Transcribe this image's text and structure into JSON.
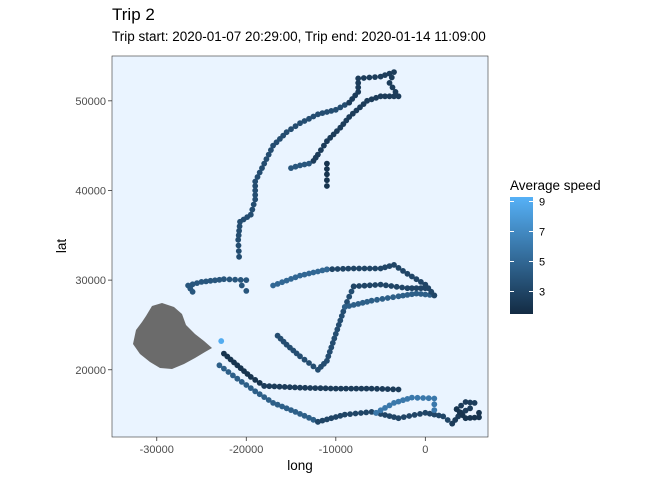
{
  "chart_data": {
    "type": "scatter",
    "title": "Trip 2",
    "subtitle": "Trip start: 2020-01-07 20:29:00, Trip end: 2020-01-14 11:09:00",
    "xlabel": "long",
    "ylabel": "lat",
    "xlim": [
      -35000,
      7000
    ],
    "ylim": [
      12500,
      55000
    ],
    "x_ticks": [
      -30000,
      -20000,
      -10000,
      0
    ],
    "x_tick_labels": [
      "-30000",
      "-20000",
      "-10000",
      "0"
    ],
    "y_ticks": [
      20000,
      30000,
      40000,
      50000
    ],
    "y_tick_labels": [
      "20000",
      "30000",
      "40000",
      "50000"
    ],
    "grid": false,
    "panel_background": "#eaf4ff",
    "legend": {
      "title": "Average speed",
      "position": "right",
      "ticks": [
        3,
        5,
        7,
        9
      ],
      "tick_labels": [
        "3",
        "5",
        "7",
        "9"
      ],
      "range": [
        1.5,
        9.3
      ],
      "color_low": "#132b43",
      "color_high": "#56b1f7"
    },
    "island_color": "#6b6b6b",
    "track_segments": [
      {
        "speed": 2.0,
        "points": [
          [
            -22500,
            21800
          ],
          [
            -21000,
            20500
          ],
          [
            -19500,
            19200
          ],
          [
            -18000,
            18200
          ]
        ]
      },
      {
        "speed": 2.5,
        "points": [
          [
            -18000,
            18200
          ],
          [
            -14000,
            18000
          ],
          [
            -10000,
            17900
          ],
          [
            -6000,
            17900
          ],
          [
            -3000,
            17800
          ]
        ]
      },
      {
        "speed": 4.5,
        "points": [
          [
            -23000,
            20500
          ],
          [
            -21000,
            19000
          ],
          [
            -19000,
            17600
          ],
          [
            -17000,
            16300
          ],
          [
            -14500,
            15300
          ],
          [
            -12000,
            14200
          ]
        ]
      },
      {
        "speed": 3.0,
        "points": [
          [
            -12000,
            14200
          ],
          [
            -9000,
            15000
          ],
          [
            -6000,
            15300
          ],
          [
            -3000,
            14600
          ],
          [
            0,
            15200
          ],
          [
            2000,
            14800
          ],
          [
            3000,
            14000
          ]
        ]
      },
      {
        "speed": 6.0,
        "points": [
          [
            -5500,
            15200
          ],
          [
            -3500,
            16300
          ],
          [
            -1500,
            16900
          ],
          [
            1000,
            16800
          ],
          [
            1000,
            15500
          ]
        ]
      },
      {
        "speed": 2.5,
        "points": [
          [
            3000,
            14000
          ],
          [
            4000,
            15200
          ],
          [
            5000,
            15700
          ],
          [
            5500,
            16300
          ],
          [
            4500,
            16400
          ],
          [
            3500,
            15600
          ]
        ]
      },
      {
        "speed": 2.0,
        "points": [
          [
            3500,
            15600
          ],
          [
            4500,
            14600
          ],
          [
            6000,
            14700
          ],
          [
            6000,
            15200
          ]
        ]
      },
      {
        "speed": 3.5,
        "points": [
          [
            -16500,
            23800
          ],
          [
            -15500,
            22800
          ],
          [
            -14000,
            21500
          ],
          [
            -12000,
            20000
          ],
          [
            -11000,
            21000
          ],
          [
            -10000,
            24000
          ],
          [
            -9000,
            27000
          ],
          [
            -8000,
            29300
          ]
        ]
      },
      {
        "speed": 3.0,
        "points": [
          [
            -8000,
            29300
          ],
          [
            -5000,
            29500
          ],
          [
            -2000,
            29100
          ],
          [
            0,
            29100
          ]
        ]
      },
      {
        "speed": 4.5,
        "points": [
          [
            -9000,
            27000
          ],
          [
            -6000,
            27700
          ],
          [
            -3000,
            28200
          ],
          [
            -1000,
            28500
          ],
          [
            1000,
            28300
          ]
        ]
      },
      {
        "speed": 3.0,
        "points": [
          [
            1000,
            28300
          ],
          [
            0,
            29500
          ],
          [
            -2000,
            30700
          ],
          [
            -3500,
            31700
          ],
          [
            -5000,
            31300
          ],
          [
            -8000,
            31300
          ],
          [
            -11000,
            31200
          ]
        ]
      },
      {
        "speed": 5.0,
        "points": [
          [
            -11000,
            31200
          ],
          [
            -14000,
            30500
          ],
          [
            -17000,
            29400
          ]
        ]
      },
      {
        "speed": 4.0,
        "points": [
          [
            -20000,
            30000
          ],
          [
            -22500,
            30100
          ],
          [
            -25000,
            29800
          ],
          [
            -26500,
            29400
          ],
          [
            -26000,
            28700
          ]
        ]
      },
      {
        "speed": 4.0,
        "points": [
          [
            -20000,
            28800
          ],
          [
            -20500,
            29400
          ]
        ]
      },
      {
        "speed": 3.5,
        "points": [
          [
            -20800,
            32600
          ],
          [
            -20900,
            34500
          ],
          [
            -20700,
            36500
          ],
          [
            -19500,
            37300
          ],
          [
            -19000,
            39000
          ],
          [
            -19000,
            41000
          ],
          [
            -18000,
            43000
          ],
          [
            -17000,
            45000
          ],
          [
            -15500,
            46500
          ],
          [
            -14000,
            47500
          ],
          [
            -12000,
            48500
          ],
          [
            -10000,
            49000
          ],
          [
            -8500,
            49800
          ]
        ]
      },
      {
        "speed": 2.5,
        "points": [
          [
            -8500,
            49800
          ],
          [
            -7500,
            51000
          ],
          [
            -7500,
            52500
          ],
          [
            -5000,
            52700
          ],
          [
            -3500,
            53200
          ],
          [
            -4000,
            52000
          ],
          [
            -3000,
            50500
          ],
          [
            -5000,
            50500
          ],
          [
            -6500,
            50000
          ],
          [
            -8500,
            48200
          ],
          [
            -9500,
            47000
          ],
          [
            -11000,
            45500
          ],
          [
            -12000,
            44000
          ],
          [
            -12500,
            43300
          ]
        ]
      },
      {
        "speed": 2.0,
        "points": [
          [
            -11000,
            43000
          ],
          [
            -11000,
            41800
          ],
          [
            -11000,
            40500
          ]
        ]
      },
      {
        "speed": 4.0,
        "points": [
          [
            -15000,
            42500
          ],
          [
            -14000,
            42800
          ],
          [
            -13000,
            43000
          ]
        ]
      }
    ]
  }
}
